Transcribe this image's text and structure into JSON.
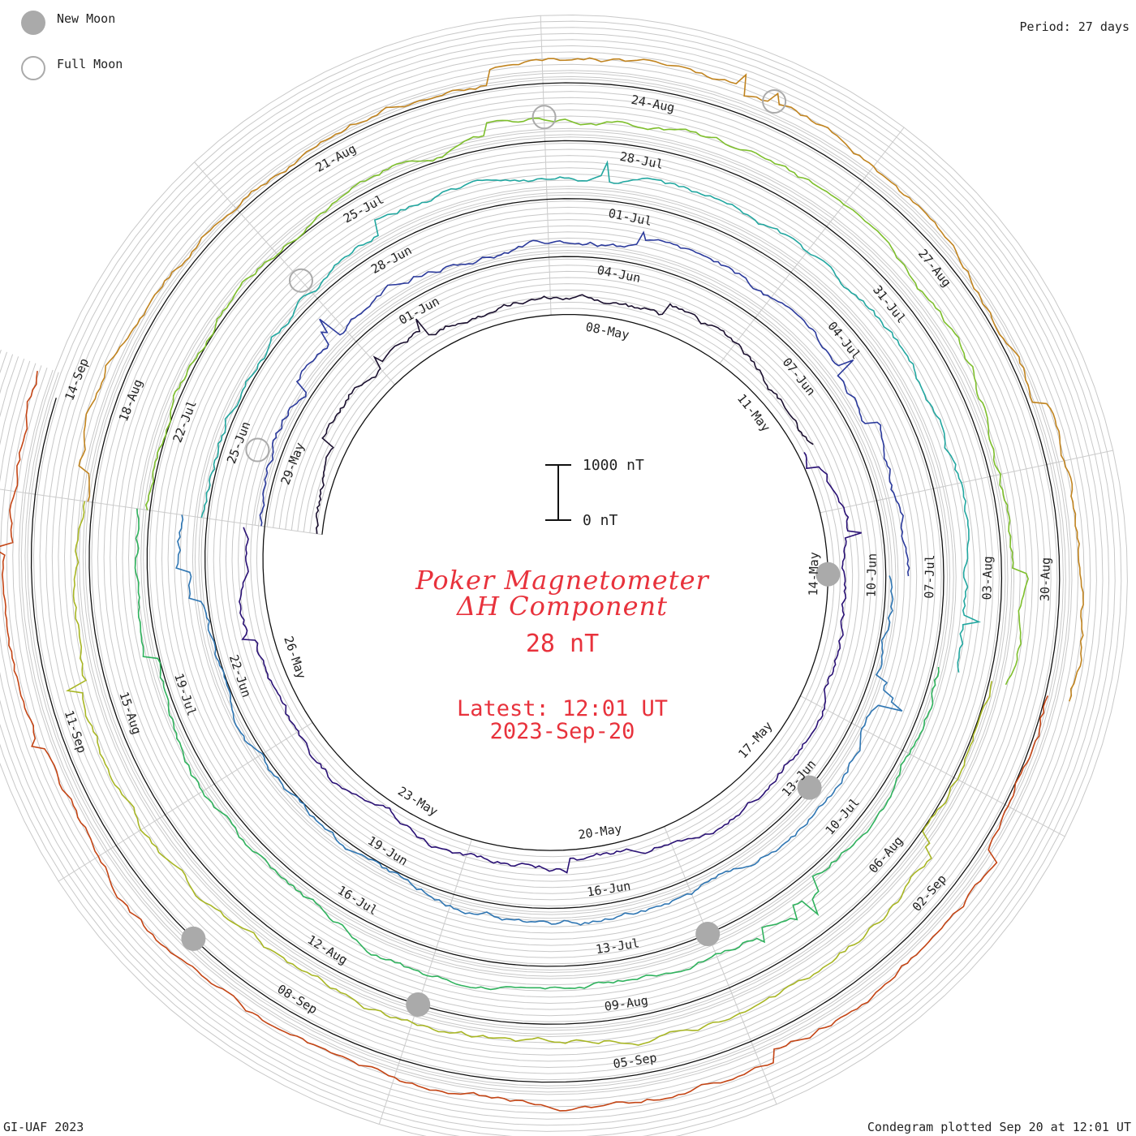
{
  "legend": {
    "new_moon": "New Moon",
    "full_moon": "Full Moon"
  },
  "period_label": "Period: 27 days",
  "credit": "GI-UAF 2023",
  "plotted": "Condegram plotted Sep 20 at 12:01 UT",
  "chart_data": {
    "type": "line",
    "title": "Poker Magnetometer",
    "subtitle": "ΔH Component",
    "current_value": "28 nT",
    "latest_line1": "Latest: 12:01 UT",
    "latest_line2": "2023-Sep-20",
    "scale": {
      "top": "1000 nT",
      "bottom": "0 nT"
    },
    "period_days": 27,
    "date_labels": [
      "08-May",
      "11-May",
      "14-May",
      "17-May",
      "20-May",
      "23-May",
      "26-May",
      "29-May",
      "01-Jun",
      "04-Jun",
      "07-Jun",
      "10-Jun",
      "13-Jun",
      "16-Jun",
      "19-Jun",
      "22-Jun",
      "25-Jun",
      "28-Jun",
      "01-Jul",
      "04-Jul",
      "07-Jul",
      "10-Jul",
      "13-Jul",
      "16-Jul",
      "19-Jul",
      "22-Jul",
      "25-Jul",
      "28-Jul",
      "31-Jul",
      "03-Aug",
      "06-Aug",
      "09-Aug",
      "12-Aug",
      "15-Aug",
      "18-Aug",
      "21-Aug",
      "24-Aug",
      "27-Aug",
      "30-Aug",
      "02-Sep",
      "05-Sep",
      "08-Sep",
      "11-Sep",
      "14-Sep"
    ],
    "first_label_day": 7,
    "last_day": 136,
    "new_moon_days": [
      13,
      43,
      72,
      102,
      131
    ],
    "full_moon_days": [
      28,
      57,
      87,
      116
    ],
    "series": [
      {
        "color": "#1a0f2e",
        "start": 0,
        "end": 11
      },
      {
        "color": "#2a1175",
        "start": 11,
        "end": 27
      },
      {
        "color": "#2b3a9c",
        "start": 27,
        "end": 40
      },
      {
        "color": "#2f76b3",
        "start": 40,
        "end": 54
      },
      {
        "color": "#22a7a0",
        "start": 54,
        "end": 68
      },
      {
        "color": "#2fb25d",
        "start": 68,
        "end": 81
      },
      {
        "color": "#7ebf2c",
        "start": 81,
        "end": 95
      },
      {
        "color": "#a8b624",
        "start": 95,
        "end": 108
      },
      {
        "color": "#c1841f",
        "start": 108,
        "end": 122
      },
      {
        "color": "#c44515",
        "start": 122,
        "end": 136
      }
    ]
  }
}
